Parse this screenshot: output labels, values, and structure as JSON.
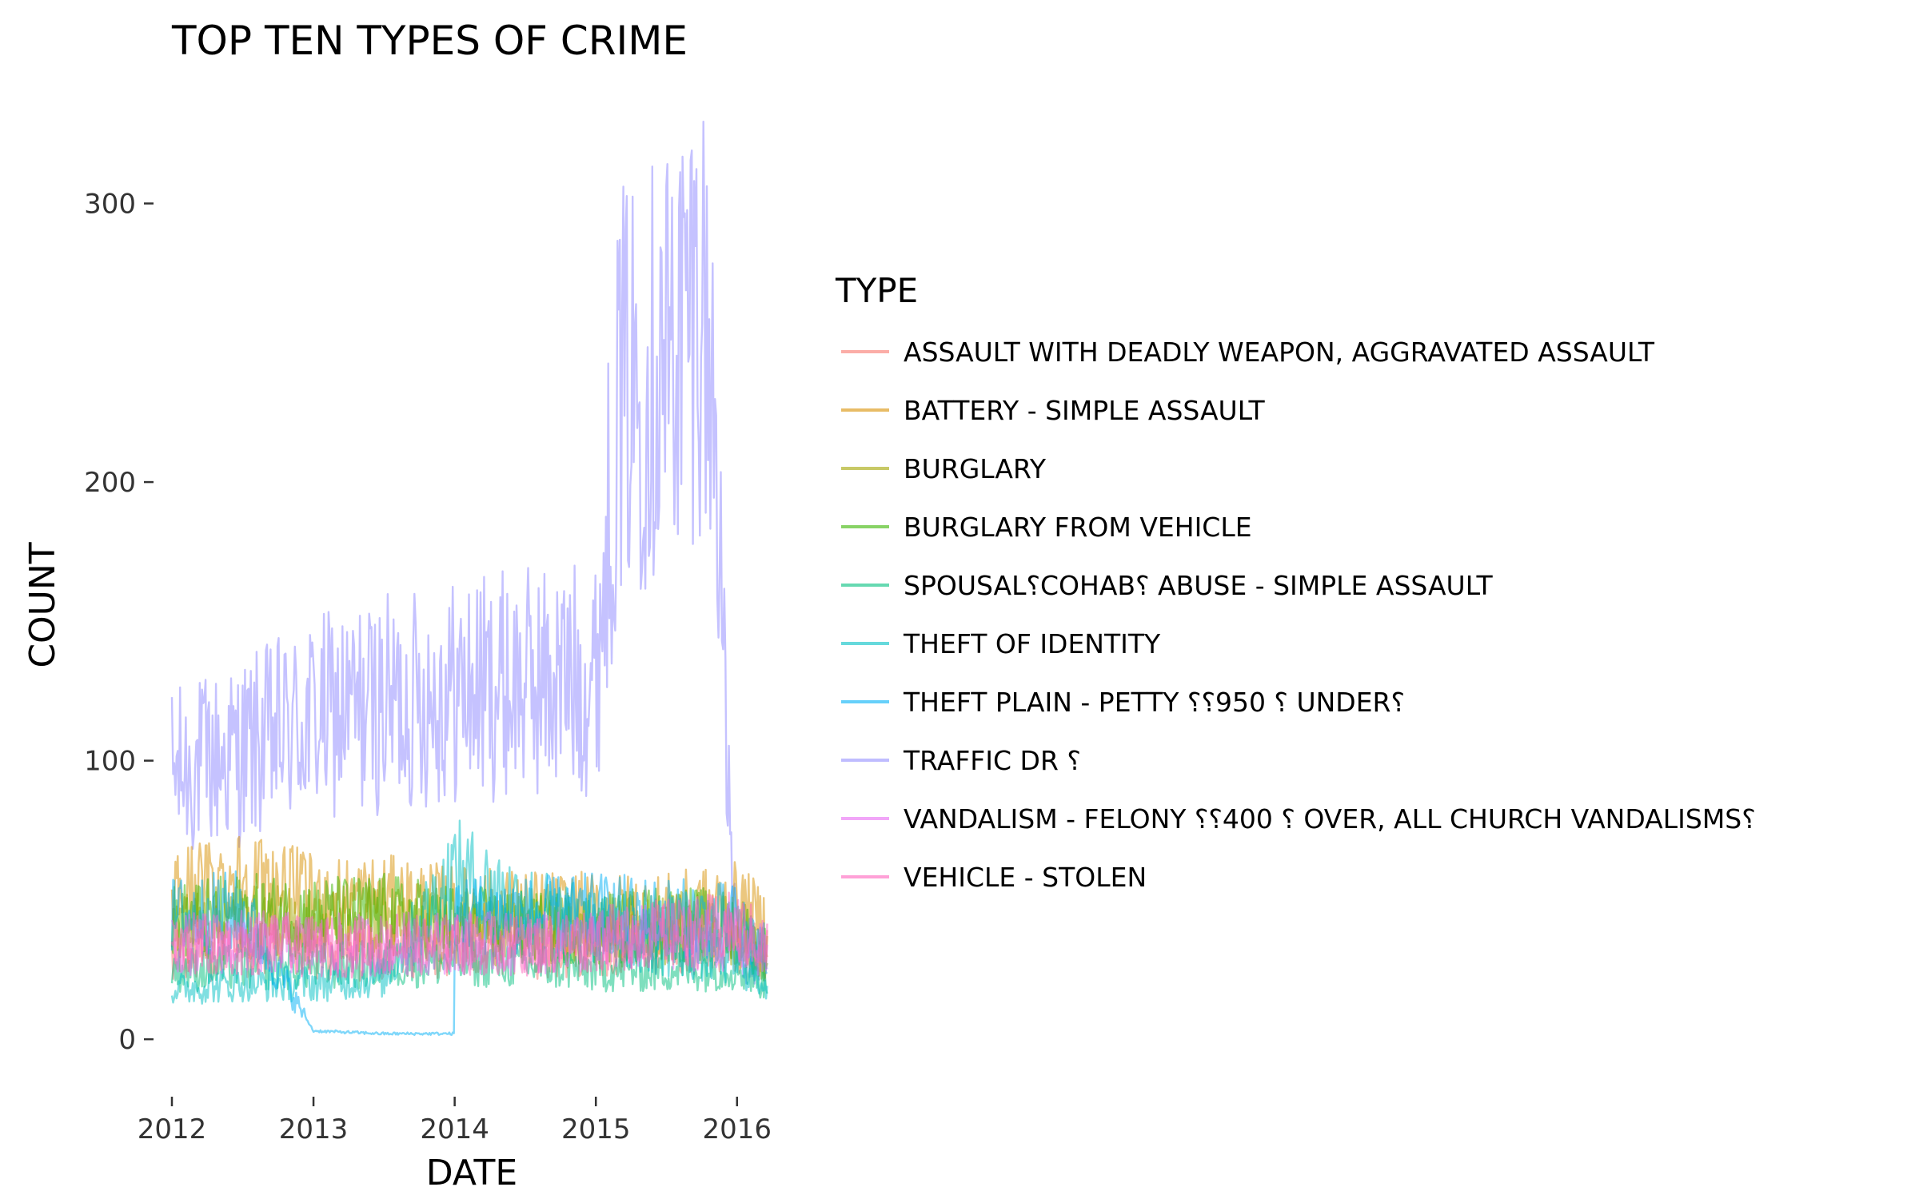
{
  "chart_data": {
    "type": "line",
    "title": "TOP TEN TYPES OF CRIME",
    "xlabel": "DATE",
    "ylabel": "COUNT",
    "xlim": [
      "2012-01-01",
      "2016-03-20"
    ],
    "ylim": [
      -10,
      330
    ],
    "x_ticks": [
      {
        "label": "2012",
        "value": "2012-01-01"
      },
      {
        "label": "2013",
        "value": "2013-01-01"
      },
      {
        "label": "2014",
        "value": "2014-01-01"
      },
      {
        "label": "2015",
        "value": "2015-01-01"
      },
      {
        "label": "2016",
        "value": "2016-01-01"
      }
    ],
    "y_ticks": [
      {
        "label": "0",
        "value": 0
      },
      {
        "label": "100",
        "value": 100
      },
      {
        "label": "200",
        "value": 200
      },
      {
        "label": "300",
        "value": 300
      }
    ],
    "grid": false,
    "legend_title": "TYPE",
    "legend_position": "right",
    "series": [
      {
        "name": "ASSAULT WITH DEADLY WEAPON, AGGRAVATED ASSAULT",
        "color": "#F8766D",
        "points": [
          [
            "2012-01-01",
            30
          ],
          [
            "2012-07-01",
            32
          ],
          [
            "2013-01-01",
            31
          ],
          [
            "2013-07-01",
            31
          ],
          [
            "2014-01-01",
            33
          ],
          [
            "2014-07-01",
            32
          ],
          [
            "2015-01-01",
            33
          ],
          [
            "2015-07-01",
            35
          ],
          [
            "2016-01-01",
            34
          ],
          [
            "2016-03-20",
            30
          ]
        ]
      },
      {
        "name": "BATTERY - SIMPLE ASSAULT",
        "color": "#D89000",
        "points": [
          [
            "2012-01-01",
            52
          ],
          [
            "2012-07-01",
            58
          ],
          [
            "2013-01-01",
            50
          ],
          [
            "2013-07-01",
            50
          ],
          [
            "2014-01-01",
            47
          ],
          [
            "2014-07-01",
            46
          ],
          [
            "2015-01-01",
            45
          ],
          [
            "2015-07-01",
            45
          ],
          [
            "2016-01-01",
            48
          ],
          [
            "2016-03-20",
            40
          ]
        ]
      },
      {
        "name": "BURGLARY",
        "color": "#A3A500",
        "points": [
          [
            "2012-01-01",
            40
          ],
          [
            "2012-07-01",
            42
          ],
          [
            "2013-01-01",
            41
          ],
          [
            "2013-07-01",
            42
          ],
          [
            "2014-01-01",
            40
          ],
          [
            "2014-07-01",
            39
          ],
          [
            "2015-01-01",
            38
          ],
          [
            "2015-07-01",
            40
          ],
          [
            "2016-01-01",
            39
          ],
          [
            "2016-03-20",
            30
          ]
        ]
      },
      {
        "name": "BURGLARY FROM VEHICLE",
        "color": "#39B600",
        "points": [
          [
            "2012-01-01",
            42
          ],
          [
            "2012-07-01",
            45
          ],
          [
            "2013-01-01",
            44
          ],
          [
            "2013-07-01",
            45
          ],
          [
            "2014-01-01",
            42
          ],
          [
            "2014-07-01",
            40
          ],
          [
            "2015-01-01",
            40
          ],
          [
            "2015-07-01",
            42
          ],
          [
            "2016-01-01",
            40
          ],
          [
            "2016-03-20",
            30
          ]
        ]
      },
      {
        "name": "SPOUSAL⸮COHAB⸮ ABUSE - SIMPLE ASSAULT",
        "color": "#00BF7D",
        "points": [
          [
            "2012-01-01",
            25
          ],
          [
            "2012-07-01",
            26
          ],
          [
            "2013-01-01",
            26
          ],
          [
            "2013-07-01",
            27
          ],
          [
            "2014-01-01",
            28
          ],
          [
            "2014-07-01",
            27
          ],
          [
            "2015-01-01",
            25
          ],
          [
            "2015-07-01",
            25
          ],
          [
            "2016-01-01",
            26
          ],
          [
            "2016-03-20",
            20
          ]
        ]
      },
      {
        "name": "THEFT OF IDENTITY",
        "color": "#00BFC4",
        "points": [
          [
            "2012-01-01",
            18
          ],
          [
            "2012-07-01",
            20
          ],
          [
            "2013-01-01",
            20
          ],
          [
            "2013-07-01",
            22
          ],
          [
            "2014-01-01",
            60
          ],
          [
            "2014-07-01",
            48
          ],
          [
            "2015-01-01",
            40
          ],
          [
            "2015-07-01",
            33
          ],
          [
            "2016-01-01",
            28
          ],
          [
            "2016-03-20",
            20
          ]
        ]
      },
      {
        "name": "THEFT PLAIN - PETTY ⸮⸮950 ⸮ UNDER⸮",
        "color": "#00B0F6",
        "points": [
          [
            "2012-01-01",
            44
          ],
          [
            "2012-07-01",
            46
          ],
          [
            "2013-01-01",
            3
          ],
          [
            "2013-07-01",
            2
          ],
          [
            "2013-12-31",
            2
          ],
          [
            "2014-01-02",
            46
          ],
          [
            "2014-07-01",
            44
          ],
          [
            "2015-01-01",
            45
          ],
          [
            "2015-07-01",
            44
          ],
          [
            "2016-01-01",
            42
          ],
          [
            "2016-03-20",
            30
          ]
        ]
      },
      {
        "name": "TRAFFIC DR ⸮",
        "color": "#9590FF",
        "points": [
          [
            "2012-01-01",
            95
          ],
          [
            "2012-07-01",
            103
          ],
          [
            "2013-01-01",
            115
          ],
          [
            "2013-07-01",
            120
          ],
          [
            "2014-01-01",
            125
          ],
          [
            "2014-07-01",
            128
          ],
          [
            "2015-01-01",
            130
          ],
          [
            "2015-03-01",
            230
          ],
          [
            "2015-07-01",
            245
          ],
          [
            "2015-10-01",
            270
          ],
          [
            "2015-11-15",
            205
          ],
          [
            "2015-12-01",
            110
          ],
          [
            "2016-01-01",
            30
          ],
          [
            "2016-03-20",
            25
          ]
        ]
      },
      {
        "name": "VANDALISM - FELONY ⸮⸮400 ⸮ OVER, ALL CHURCH VANDALISMS⸮",
        "color": "#E76BF3",
        "points": [
          [
            "2012-01-01",
            34
          ],
          [
            "2012-07-01",
            35
          ],
          [
            "2013-01-01",
            34
          ],
          [
            "2013-07-01",
            34
          ],
          [
            "2014-01-01",
            35
          ],
          [
            "2014-07-01",
            34
          ],
          [
            "2015-01-01",
            35
          ],
          [
            "2015-07-01",
            37
          ],
          [
            "2016-01-01",
            36
          ],
          [
            "2016-03-20",
            30
          ]
        ]
      },
      {
        "name": "VEHICLE - STOLEN",
        "color": "#FF62BC",
        "points": [
          [
            "2012-01-01",
            33
          ],
          [
            "2012-07-01",
            34
          ],
          [
            "2013-01-01",
            33
          ],
          [
            "2013-07-01",
            33
          ],
          [
            "2014-01-01",
            34
          ],
          [
            "2014-07-01",
            34
          ],
          [
            "2015-01-01",
            36
          ],
          [
            "2015-07-01",
            38
          ],
          [
            "2016-01-01",
            40
          ],
          [
            "2016-03-20",
            33
          ]
        ]
      }
    ]
  }
}
